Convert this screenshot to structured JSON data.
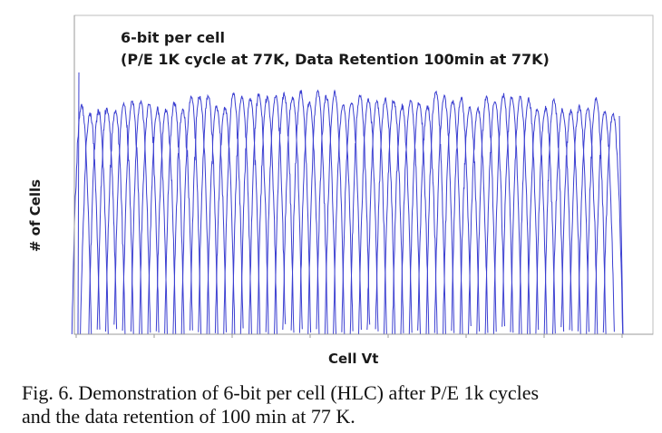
{
  "chart_data": {
    "type": "line",
    "annotation": [
      "6-bit per cell",
      "(P/E 1K cycle at 77K, Data Retention 100min at 77K)"
    ],
    "xlabel": "Cell Vt",
    "ylabel": "# of Cells",
    "num_states": 64,
    "y_scale": "log",
    "series_color": "#3b3fd1",
    "grid": false,
    "x_tick_labels": false,
    "y_tick_labels": false
  },
  "caption": {
    "line1": "Fig. 6. Demonstration of 6-bit per cell (HLC) after P/E 1k cycles",
    "line2": "and the data retention of 100 min at 77 K."
  }
}
